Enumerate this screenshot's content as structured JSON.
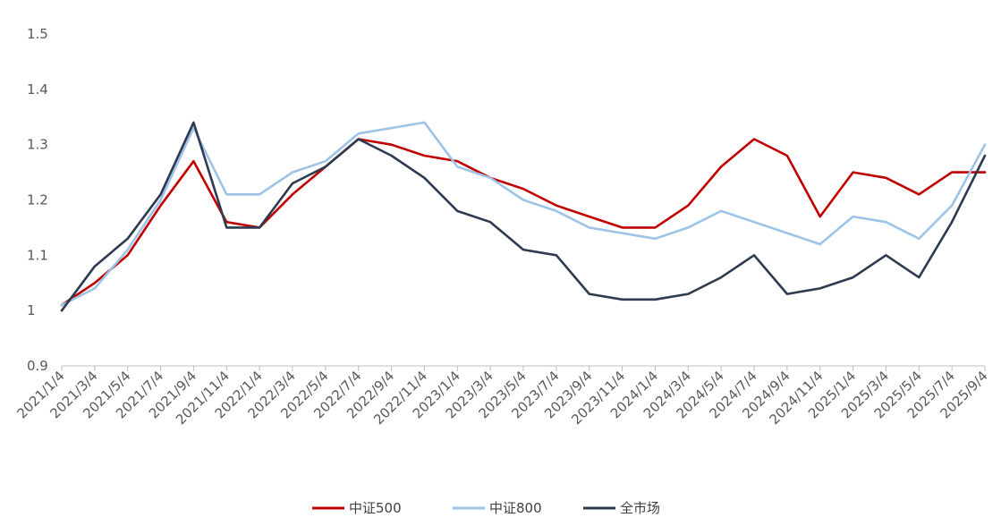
{
  "chart_data": {
    "type": "line",
    "title": "",
    "xlabel": "",
    "ylabel": "",
    "ylim": [
      0.9,
      1.5
    ],
    "yticks": [
      "0.9",
      "1",
      "1.1",
      "1.2",
      "1.3",
      "1.4",
      "1.5"
    ],
    "categories": [
      "2021/1/4",
      "2021/3/4",
      "2021/5/4",
      "2021/7/4",
      "2021/9/4",
      "2021/11/4",
      "2022/1/4",
      "2022/3/4",
      "2022/5/4",
      "2022/7/4",
      "2022/9/4",
      "2022/11/4",
      "2023/1/4",
      "2023/3/4",
      "2023/5/4",
      "2023/7/4",
      "2023/9/4",
      "2023/11/4",
      "2024/1/4",
      "2024/3/4",
      "2024/5/4",
      "2024/7/4",
      "2024/9/4",
      "2024/11/4",
      "2025/1/4",
      "2025/3/4",
      "2025/5/4",
      "2025/7/4",
      "2025/9/4"
    ],
    "grid": false,
    "legend_position": "bottom",
    "series": [
      {
        "name": "中证500",
        "color": "#c00000",
        "values": [
          1.01,
          1.05,
          1.1,
          1.19,
          1.27,
          1.16,
          1.15,
          1.21,
          1.26,
          1.31,
          1.3,
          1.28,
          1.27,
          1.24,
          1.22,
          1.19,
          1.17,
          1.15,
          1.15,
          1.19,
          1.26,
          1.31,
          1.28,
          1.17,
          1.25,
          1.24,
          1.21,
          1.25,
          1.25
        ]
      },
      {
        "name": "中证800",
        "color": "#9dc3e6",
        "values": [
          1.01,
          1.04,
          1.11,
          1.2,
          1.33,
          1.21,
          1.21,
          1.25,
          1.27,
          1.32,
          1.33,
          1.34,
          1.26,
          1.24,
          1.2,
          1.18,
          1.15,
          1.14,
          1.13,
          1.15,
          1.18,
          1.16,
          1.14,
          1.12,
          1.17,
          1.16,
          1.13,
          1.19,
          1.3
        ]
      },
      {
        "name": "全市场",
        "color": "#2e3a4f",
        "values": [
          1.0,
          1.08,
          1.13,
          1.21,
          1.34,
          1.15,
          1.15,
          1.23,
          1.26,
          1.31,
          1.28,
          1.24,
          1.18,
          1.16,
          1.11,
          1.1,
          1.03,
          1.02,
          1.02,
          1.03,
          1.06,
          1.1,
          1.03,
          1.04,
          1.06,
          1.1,
          1.06,
          1.16,
          1.28
        ]
      }
    ]
  }
}
